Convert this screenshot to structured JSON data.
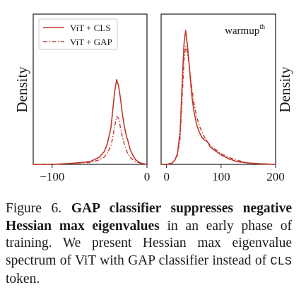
{
  "chart_data": [
    {
      "type": "line",
      "ylabel": "Density",
      "xlim": [
        -120,
        0
      ],
      "xticks": [
        -100,
        0
      ],
      "xtick_labels": [
        "−100",
        "0"
      ],
      "legend": {
        "placement": "top-left",
        "entries": [
          "ViT + CLS",
          "ViT + GAP"
        ]
      },
      "series": [
        {
          "name": "ViT + CLS",
          "style": "solid",
          "color": "#c0392b",
          "x": [
            -120,
            -100,
            -80,
            -60,
            -50,
            -45,
            -42,
            -38,
            -36,
            -34,
            -32,
            -30,
            -28,
            -26,
            -24,
            -22,
            -20,
            -18,
            -15,
            -12,
            -8,
            -5,
            -3,
            0
          ],
          "y": [
            0,
            0,
            0.01,
            0.03,
            0.08,
            0.14,
            0.22,
            0.4,
            0.6,
            0.8,
            0.92,
            0.85,
            0.72,
            0.55,
            0.42,
            0.32,
            0.25,
            0.17,
            0.1,
            0.05,
            0.02,
            0.01,
            0.005,
            0
          ]
        },
        {
          "name": "ViT + GAP",
          "style": "dashdot",
          "color": "#c0392b",
          "x": [
            -120,
            -100,
            -80,
            -60,
            -50,
            -45,
            -42,
            -38,
            -36,
            -34,
            -32,
            -30,
            -28,
            -26,
            -24,
            -22,
            -20,
            -18,
            -15,
            -12,
            -8,
            -5,
            -3,
            0
          ],
          "y": [
            0,
            0,
            0.01,
            0.02,
            0.05,
            0.08,
            0.12,
            0.2,
            0.3,
            0.42,
            0.52,
            0.5,
            0.4,
            0.3,
            0.22,
            0.16,
            0.11,
            0.08,
            0.05,
            0.03,
            0.015,
            0.005,
            0.002,
            0
          ]
        }
      ]
    },
    {
      "type": "line",
      "ylabel": "Density",
      "annotation": "warmup",
      "annotation_sup": "th",
      "xlim": [
        -10,
        200
      ],
      "xticks": [
        0,
        100,
        200
      ],
      "xtick_labels": [
        "0",
        "100",
        "200"
      ],
      "series": [
        {
          "name": "ViT + CLS",
          "style": "solid",
          "color": "#c0392b",
          "x": [
            -10,
            0,
            10,
            15,
            20,
            25,
            28,
            32,
            35,
            38,
            42,
            46,
            50,
            55,
            60,
            65,
            70,
            75,
            80,
            90,
            100,
            115,
            130,
            150,
            170,
            200
          ],
          "y": [
            0,
            0,
            0.01,
            0.03,
            0.08,
            0.25,
            0.55,
            0.9,
            1.0,
            0.9,
            0.72,
            0.52,
            0.4,
            0.3,
            0.24,
            0.2,
            0.18,
            0.17,
            0.13,
            0.1,
            0.07,
            0.04,
            0.02,
            0.01,
            0.005,
            0
          ]
        },
        {
          "name": "ViT + GAP",
          "style": "dashdot",
          "color": "#c0392b",
          "x": [
            -10,
            0,
            10,
            15,
            20,
            25,
            28,
            32,
            35,
            38,
            42,
            46,
            50,
            55,
            60,
            65,
            70,
            75,
            80,
            90,
            100,
            115,
            130,
            150,
            170,
            200
          ],
          "y": [
            0,
            0,
            0.01,
            0.03,
            0.07,
            0.2,
            0.45,
            0.78,
            0.88,
            0.84,
            0.72,
            0.58,
            0.46,
            0.36,
            0.29,
            0.24,
            0.2,
            0.17,
            0.14,
            0.11,
            0.08,
            0.05,
            0.03,
            0.01,
            0.005,
            0
          ]
        }
      ]
    }
  ],
  "caption": {
    "label": "Figure 6.",
    "title_bold": "GAP classifier suppresses negative Hessian max eigenvalues",
    "text_before_code": " in an early phase of training. We present Hessian max eigenvalue spectrum of ViT with GAP classifier instead of ",
    "code": "CLS",
    "text_after_code": " token."
  }
}
